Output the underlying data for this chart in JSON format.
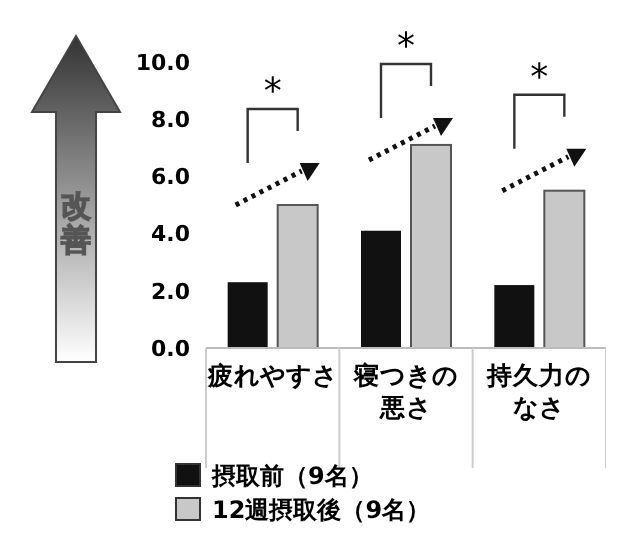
{
  "chart_data": {
    "type": "bar",
    "categories": [
      "疲れやすさ",
      "寝つきの悪さ",
      "持久力のなさ"
    ],
    "series": [
      {
        "name": "摂取前（9名）",
        "color": "#111111",
        "values": [
          2.3,
          4.1,
          2.2
        ]
      },
      {
        "name": "12週摂取後（9名）",
        "color": "#c8c8c8",
        "values": [
          5.0,
          7.1,
          5.5
        ]
      }
    ],
    "ylim": [
      0,
      10
    ],
    "yticks": [
      {
        "value": 0,
        "label": "0.0"
      },
      {
        "value": 2,
        "label": "2.0"
      },
      {
        "value": 4,
        "label": "4.0"
      },
      {
        "value": 6,
        "label": "6.0"
      },
      {
        "value": 8,
        "label": "8.0"
      },
      {
        "value": 10,
        "label": "10.0"
      }
    ],
    "grid": false,
    "legend": "bottom left",
    "annotations": [
      "改善",
      "*",
      "*",
      "*"
    ]
  }
}
